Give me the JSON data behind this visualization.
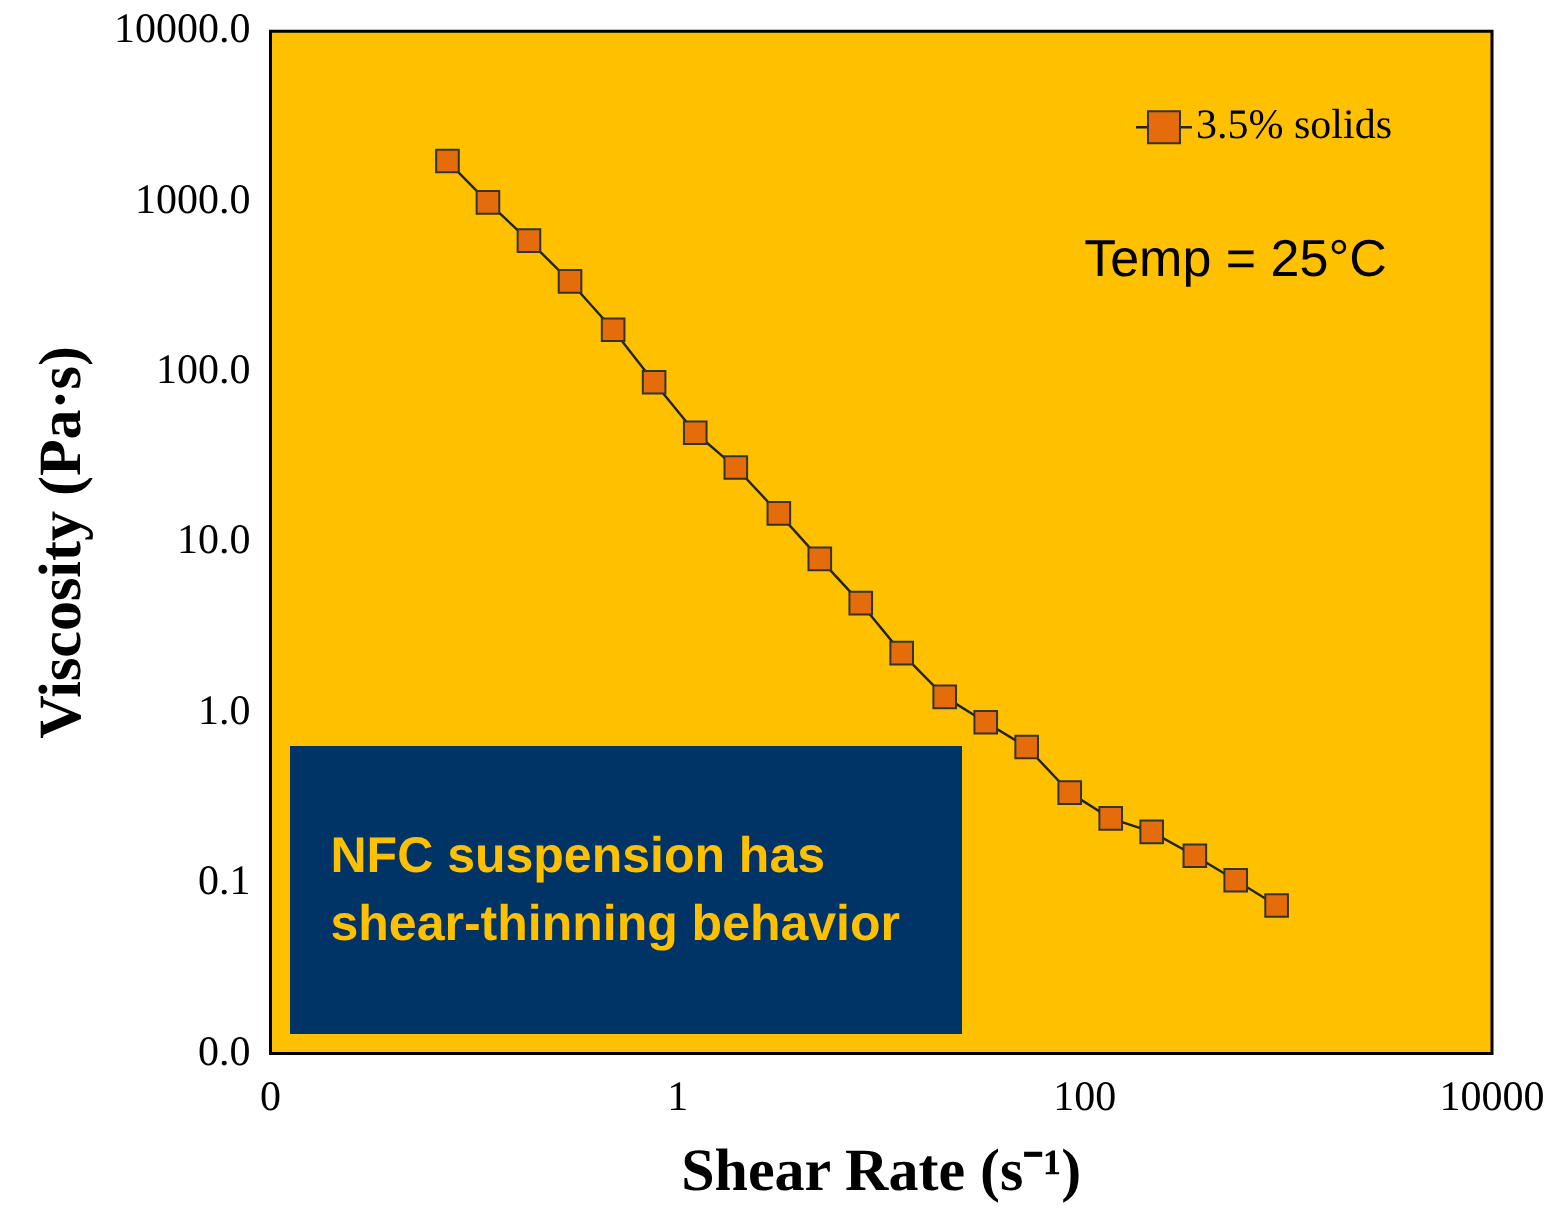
{
  "chart_data": {
    "type": "line",
    "xlabel": "Shear Rate (s⁻¹)",
    "ylabel": "Viscosity (Pa·s)",
    "x": [
      0.074,
      0.117,
      0.186,
      0.296,
      0.482,
      0.766,
      1.22,
      1.93,
      3.14,
      4.99,
      7.93,
      12.6,
      20.5,
      32.6,
      51.8,
      84.3,
      134,
      213,
      347,
      551,
      875
    ],
    "series": [
      {
        "name": "3.5% solids",
        "color": "#e46c0a",
        "values": [
          1730,
          990,
          590,
          340,
          177,
          87,
          44,
          27.5,
          14.8,
          8.0,
          4.4,
          2.24,
          1.24,
          0.88,
          0.63,
          0.34,
          0.24,
          0.2,
          0.145,
          0.104,
          0.074
        ]
      }
    ],
    "log": "xy",
    "xlim": [
      0.01,
      10000
    ],
    "ylim": [
      0.01,
      10000
    ],
    "xticks": [
      {
        "value": 0.01,
        "label": "0"
      },
      1,
      100,
      10000
    ],
    "yticks": [
      {
        "value": 0.01,
        "label": "0.0"
      },
      {
        "value": 0.1,
        "label": "0.1"
      },
      {
        "value": 1,
        "label": "1.0"
      },
      {
        "value": 10,
        "label": "10.0"
      },
      {
        "value": 100,
        "label": "100.0"
      },
      {
        "value": 1000,
        "label": "1000.0"
      },
      {
        "value": 10000,
        "label": "10000.0"
      }
    ],
    "grid": false,
    "legend": "top right",
    "marker": "square",
    "line_style": "solid",
    "annotations": [
      "Temp = 25°C",
      "NFC suspension has shear-thinning behavior"
    ]
  }
}
